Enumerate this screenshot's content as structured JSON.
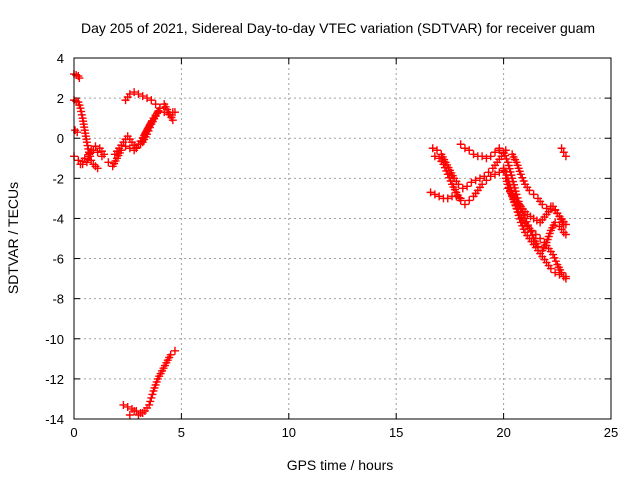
{
  "chart_data": {
    "type": "scatter",
    "title": "Day 205 of 2021, Sidereal Day-to-day VTEC variation (SDTVAR) for receiver guam",
    "xlabel": "GPS time / hours",
    "ylabel": "SDTVAR / TECUs",
    "xlim": [
      0,
      25
    ],
    "ylim": [
      -14,
      4
    ],
    "xticks": [
      0,
      5,
      10,
      15,
      20,
      25
    ],
    "yticks": [
      -14,
      -12,
      -10,
      -8,
      -6,
      -4,
      -2,
      0,
      2,
      4
    ],
    "grid": true,
    "marker": "+",
    "series_color": "#ff0000",
    "series": [
      {
        "name": "s1",
        "x": [
          0.0,
          0.1,
          0.2,
          0.25
        ],
        "y": [
          3.2,
          3.15,
          3.1,
          3.0
        ]
      },
      {
        "name": "s2",
        "x": [
          0.05,
          0.15
        ],
        "y": [
          0.4,
          0.3
        ]
      },
      {
        "name": "s3",
        "x": [
          0.0,
          0.1,
          0.2,
          0.3,
          0.4,
          0.5,
          0.6,
          0.7,
          0.8,
          0.9,
          1.0,
          1.1
        ],
        "y": [
          1.9,
          1.85,
          1.8,
          1.5,
          1.0,
          0.4,
          -0.2,
          -0.7,
          -1.1,
          -1.3,
          -1.4,
          -1.5
        ]
      },
      {
        "name": "s4",
        "x": [
          0.0,
          0.2,
          0.4,
          0.6,
          0.8,
          1.0,
          1.2,
          1.4
        ],
        "y": [
          -0.9,
          -1.1,
          -1.3,
          -1.2,
          -0.6,
          -0.4,
          -0.5,
          -0.8
        ]
      },
      {
        "name": "s5",
        "x": [
          0.3,
          0.5,
          0.7,
          0.9,
          1.1,
          1.3
        ],
        "y": [
          -1.3,
          -1.0,
          -0.8,
          -0.6,
          -0.7,
          -0.9
        ]
      },
      {
        "name": "s6",
        "x": [
          1.6,
          1.8,
          2.0,
          2.2,
          2.4,
          2.6,
          2.8,
          3.0,
          3.2,
          3.4,
          3.6
        ],
        "y": [
          -1.2,
          -1.4,
          -1.0,
          -0.6,
          -0.4,
          -0.5,
          -0.6,
          -0.3,
          0.0,
          0.4,
          0.8
        ]
      },
      {
        "name": "s7",
        "x": [
          1.9,
          2.1,
          2.3,
          2.5,
          2.7,
          2.9,
          3.1,
          3.3,
          3.5,
          3.7,
          3.9
        ],
        "y": [
          -0.8,
          -0.5,
          -0.2,
          0.1,
          -0.2,
          -0.5,
          -0.3,
          0.2,
          0.6,
          1.0,
          1.3
        ]
      },
      {
        "name": "s8",
        "x": [
          2.4,
          2.6,
          2.8,
          3.0,
          3.2,
          3.4,
          3.6,
          3.8,
          4.0,
          4.2,
          4.4,
          4.6,
          4.7
        ],
        "y": [
          1.9,
          2.2,
          2.3,
          2.2,
          2.1,
          2.0,
          1.9,
          1.7,
          1.5,
          1.3,
          1.2,
          1.3,
          1.3
        ]
      },
      {
        "name": "s9",
        "x": [
          3.2,
          3.4,
          3.6,
          3.8,
          4.0,
          4.2,
          4.4,
          4.6
        ],
        "y": [
          -0.2,
          0.2,
          0.7,
          1.1,
          1.5,
          1.7,
          1.3,
          0.9
        ]
      },
      {
        "name": "s10",
        "x": [
          2.3,
          2.5,
          2.7,
          2.9,
          3.1,
          3.3,
          3.5,
          3.7,
          3.9,
          4.1,
          4.3,
          4.5,
          4.7
        ],
        "y": [
          -13.3,
          -13.4,
          -13.5,
          -13.6,
          -13.7,
          -13.6,
          -13.3,
          -12.6,
          -12.0,
          -11.6,
          -11.2,
          -10.8,
          -10.6
        ]
      },
      {
        "name": "s11",
        "x": [
          2.6,
          2.8,
          3.0,
          3.2
        ],
        "y": [
          -13.8,
          -13.6,
          -13.8,
          -13.7
        ]
      },
      {
        "name": "s12",
        "x": [
          16.7,
          16.9,
          17.1,
          17.3,
          17.5,
          17.7,
          17.9,
          18.1,
          18.3,
          18.5,
          18.7,
          18.9,
          19.1,
          19.3,
          19.5,
          19.7,
          19.9,
          20.1
        ],
        "y": [
          -0.5,
          -0.6,
          -0.8,
          -1.2,
          -1.6,
          -2.0,
          -2.3,
          -2.5,
          -2.4,
          -2.2,
          -2.1,
          -2.0,
          -1.9,
          -1.7,
          -1.5,
          -1.2,
          -0.9,
          -0.6
        ]
      },
      {
        "name": "s13",
        "x": [
          16.8,
          17.0,
          17.2,
          17.4,
          17.6,
          17.8,
          18.0,
          18.2,
          18.4,
          18.6,
          18.8,
          19.0,
          19.2,
          19.4,
          19.6,
          19.8,
          20.0
        ],
        "y": [
          -0.9,
          -1.0,
          -1.3,
          -1.8,
          -2.3,
          -2.7,
          -3.1,
          -3.3,
          -3.1,
          -2.9,
          -2.6,
          -2.3,
          -2.1,
          -1.9,
          -1.8,
          -1.7,
          -1.6
        ]
      },
      {
        "name": "s14",
        "x": [
          16.6,
          16.8,
          17.0,
          17.2,
          17.4,
          17.6,
          17.8,
          18.0
        ],
        "y": [
          -2.7,
          -2.8,
          -2.9,
          -3.0,
          -3.0,
          -2.9,
          -2.9,
          -3.0
        ]
      },
      {
        "name": "s15",
        "x": [
          18.0,
          18.2,
          18.4,
          18.6,
          18.8,
          19.0,
          19.2,
          19.4,
          19.6,
          19.8
        ],
        "y": [
          -0.3,
          -0.5,
          -0.6,
          -0.8,
          -0.9,
          -0.9,
          -1.0,
          -0.9,
          -0.7,
          -0.5
        ]
      },
      {
        "name": "s16",
        "x": [
          19.8,
          20.0,
          20.2,
          20.4,
          20.6,
          20.8,
          21.0,
          21.2,
          21.4,
          21.6,
          21.8,
          22.0,
          22.2,
          22.4,
          22.6,
          22.8,
          22.9
        ],
        "y": [
          -0.6,
          -0.7,
          -1.2,
          -2.0,
          -2.8,
          -3.5,
          -4.0,
          -4.5,
          -5.0,
          -5.4,
          -5.6,
          -5.2,
          -4.6,
          -4.2,
          -4.4,
          -4.7,
          -4.8
        ]
      },
      {
        "name": "s17",
        "x": [
          20.0,
          20.2,
          20.4,
          20.6,
          20.8,
          21.0,
          21.2,
          21.4,
          21.6,
          21.8,
          22.0,
          22.2,
          22.4,
          22.6,
          22.8,
          22.9
        ],
        "y": [
          -1.5,
          -2.0,
          -2.8,
          -3.5,
          -4.2,
          -4.7,
          -5.0,
          -5.3,
          -5.6,
          -5.9,
          -6.2,
          -6.5,
          -6.7,
          -6.8,
          -6.9,
          -7.0
        ]
      },
      {
        "name": "s18",
        "x": [
          20.1,
          20.3,
          20.5,
          20.7,
          20.9,
          21.1,
          21.3,
          21.5,
          21.7,
          21.9,
          22.1,
          22.3,
          22.5,
          22.7,
          22.9
        ],
        "y": [
          -2.0,
          -2.6,
          -3.2,
          -3.7,
          -4.1,
          -4.4,
          -4.6,
          -4.8,
          -5.0,
          -5.2,
          -5.5,
          -5.8,
          -6.3,
          -6.7,
          -6.9
        ]
      },
      {
        "name": "s19",
        "x": [
          20.4,
          20.6,
          20.8,
          21.0,
          21.2,
          21.4,
          21.6,
          21.8,
          22.0,
          22.2,
          22.4,
          22.6,
          22.8
        ],
        "y": [
          -0.8,
          -1.2,
          -1.8,
          -2.3,
          -2.6,
          -2.8,
          -3.0,
          -3.3,
          -3.5,
          -3.4,
          -3.6,
          -3.9,
          -4.3
        ]
      },
      {
        "name": "s20",
        "x": [
          20.2,
          20.5,
          20.8,
          21.1,
          21.4,
          21.7,
          22.0,
          22.3,
          22.6,
          22.9
        ],
        "y": [
          -2.5,
          -3.0,
          -3.4,
          -3.8,
          -4.0,
          -4.2,
          -3.8,
          -3.4,
          -3.9,
          -4.3
        ]
      },
      {
        "name": "s21",
        "x": [
          22.7,
          22.8,
          22.9
        ],
        "y": [
          -0.5,
          -0.7,
          -0.9
        ]
      }
    ]
  }
}
